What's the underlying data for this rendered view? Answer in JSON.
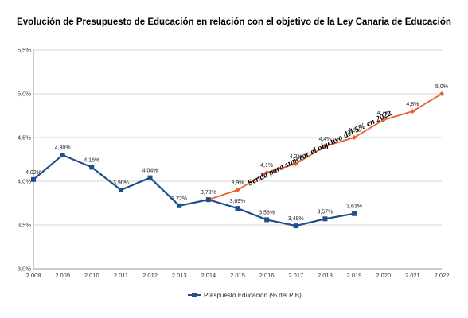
{
  "chart_data": {
    "type": "line",
    "title": "Evolución de Presupuesto de Educación en relación con el objetivo de la Ley Canaria de Educación",
    "x": [
      "2.008",
      "2.009",
      "2.010",
      "2.011",
      "2.012",
      "2.013",
      "2.014",
      "2.015",
      "2.016",
      "2.017",
      "2.018",
      "2.019",
      "2.020",
      "2.021",
      "2.022"
    ],
    "y_ticks": [
      "3,0%",
      "3,5%",
      "4,0%",
      "4,5%",
      "5,0%",
      "5,5%"
    ],
    "ylim": [
      3.0,
      5.5
    ],
    "grid": true,
    "legend_position": "bottom",
    "series": [
      {
        "name": "Prespuesto Educación (% del PIB)",
        "color": "#1f4e8c",
        "marker": "square",
        "x": [
          "2.008",
          "2.009",
          "2.010",
          "2.011",
          "2.012",
          "2.013",
          "2.014",
          "2.015",
          "2.016",
          "2.017",
          "2.018",
          "2.019"
        ],
        "values": [
          4.02,
          4.3,
          4.16,
          3.9,
          4.04,
          3.72,
          3.79,
          3.69,
          3.56,
          3.49,
          3.57,
          3.63
        ],
        "labels": [
          "4,02%",
          "4,30%",
          "4,16%",
          "3,90%",
          "4,04%",
          "3,72%",
          "3,79%",
          "3,69%",
          "3,56%",
          "3,49%",
          "3,57%",
          "3,63%"
        ]
      },
      {
        "name": "",
        "color": "#e8622c",
        "marker": "diamond",
        "x": [
          "2.014",
          "2.015",
          "2.016",
          "2.017",
          "2.018",
          "2.019",
          "2.020",
          "2.021",
          "2.022"
        ],
        "values": [
          3.79,
          3.9,
          4.1,
          4.2,
          4.4,
          4.5,
          4.7,
          4.8,
          5.0
        ],
        "labels": [
          "",
          "3,9%",
          "4,1%",
          "4,2%",
          "4,4%",
          "4,5%",
          "4,7%",
          "4,8%",
          "5,0%"
        ]
      }
    ],
    "annotations": [
      {
        "text": "Senda para superar el objetivo del 5% en 2022"
      }
    ]
  }
}
